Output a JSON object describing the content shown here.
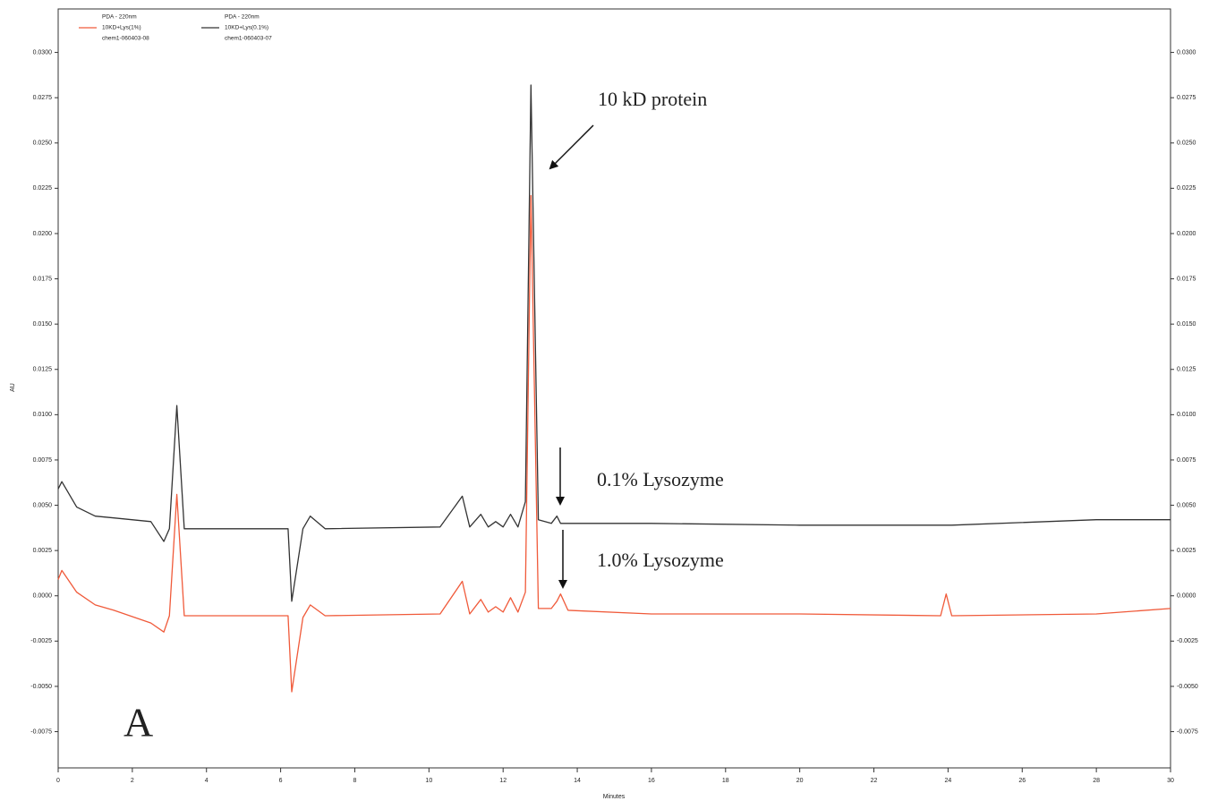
{
  "chart_data": {
    "type": "line",
    "x_label": "Minutes",
    "y_label": "AU",
    "xlim": [
      0,
      30
    ],
    "ylim": [
      -0.0095,
      0.0324
    ],
    "xticks": [
      0,
      2,
      4,
      6,
      8,
      10,
      12,
      14,
      16,
      18,
      20,
      22,
      24,
      26,
      28,
      30
    ],
    "yticks": [
      {
        "value": -0.0075,
        "label": "-0.0075"
      },
      {
        "value": -0.005,
        "label": "-0.0050"
      },
      {
        "value": -0.0025,
        "label": "-0.0025"
      },
      {
        "value": 0,
        "label": "0.0000"
      },
      {
        "value": 0.0025,
        "label": "0.0025"
      },
      {
        "value": 0.005,
        "label": "0.0050"
      },
      {
        "value": 0.0075,
        "label": "0.0075"
      },
      {
        "value": 0.01,
        "label": "0.0100"
      },
      {
        "value": 0.0125,
        "label": "0.0125"
      },
      {
        "value": 0.015,
        "label": "0.0150"
      },
      {
        "value": 0.0175,
        "label": "0.0175"
      },
      {
        "value": 0.02,
        "label": "0.0200"
      },
      {
        "value": 0.0225,
        "label": "0.0225"
      },
      {
        "value": 0.025,
        "label": "0.0250"
      },
      {
        "value": 0.0275,
        "label": "0.0275"
      },
      {
        "value": 0.03,
        "label": "0.0300"
      }
    ],
    "x": [
      0,
      0.1,
      0.5,
      1,
      1.5,
      2.5,
      2.85,
      3.0,
      3.2,
      3.4,
      6.2,
      6.3,
      6.6,
      6.8,
      7.2,
      10.3,
      10.9,
      11.1,
      11.4,
      11.6,
      11.8,
      12.0,
      12.2,
      12.4,
      12.6,
      12.75,
      12.95,
      13.3,
      13.45,
      13.55,
      13.75,
      16,
      20,
      23.8,
      23.95,
      24.1,
      28,
      30
    ],
    "series": [
      {
        "detector": "PDA - 220nm",
        "name": "10KD+Lys(1%)",
        "file": "chem1-060403-08",
        "color": "#f05a3a",
        "values": [
          0.0009,
          0.0014,
          0.0002,
          -0.0005,
          -0.0008,
          -0.0015,
          -0.002,
          -0.0011,
          0.0056,
          -0.0011,
          -0.0011,
          -0.0053,
          -0.0012,
          -0.0005,
          -0.0011,
          -0.001,
          0.0008,
          -0.001,
          -0.0002,
          -0.0009,
          -0.0006,
          -0.0009,
          -0.0001,
          -0.0009,
          0.0002,
          0.0221,
          -0.0007,
          -0.0007,
          -0.0003,
          0.0001,
          -0.0008,
          -0.001,
          -0.001,
          -0.0011,
          0.0001,
          -0.0011,
          -0.001,
          -0.0007
        ]
      },
      {
        "detector": "PDA - 220nm",
        "name": "10KD+Lys(0.1%)",
        "file": "chem1-060403-07",
        "color": "#333333",
        "values": [
          0.0059,
          0.0063,
          0.0049,
          0.0044,
          0.0043,
          0.0041,
          0.003,
          0.0037,
          0.0105,
          0.0037,
          0.0037,
          -0.0003,
          0.0037,
          0.0044,
          0.0037,
          0.0038,
          0.0055,
          0.0038,
          0.0045,
          0.0038,
          0.0041,
          0.0038,
          0.0045,
          0.0038,
          0.0052,
          0.0282,
          0.0042,
          0.004,
          0.0044,
          0.004,
          0.004,
          0.004,
          0.0039,
          0.0039,
          0.0039,
          0.0039,
          0.0042,
          0.0042
        ]
      }
    ],
    "annotations": [
      "10 kD protein",
      "0.1% Lysozyme",
      "1.0% Lysozyme",
      "A"
    ]
  }
}
